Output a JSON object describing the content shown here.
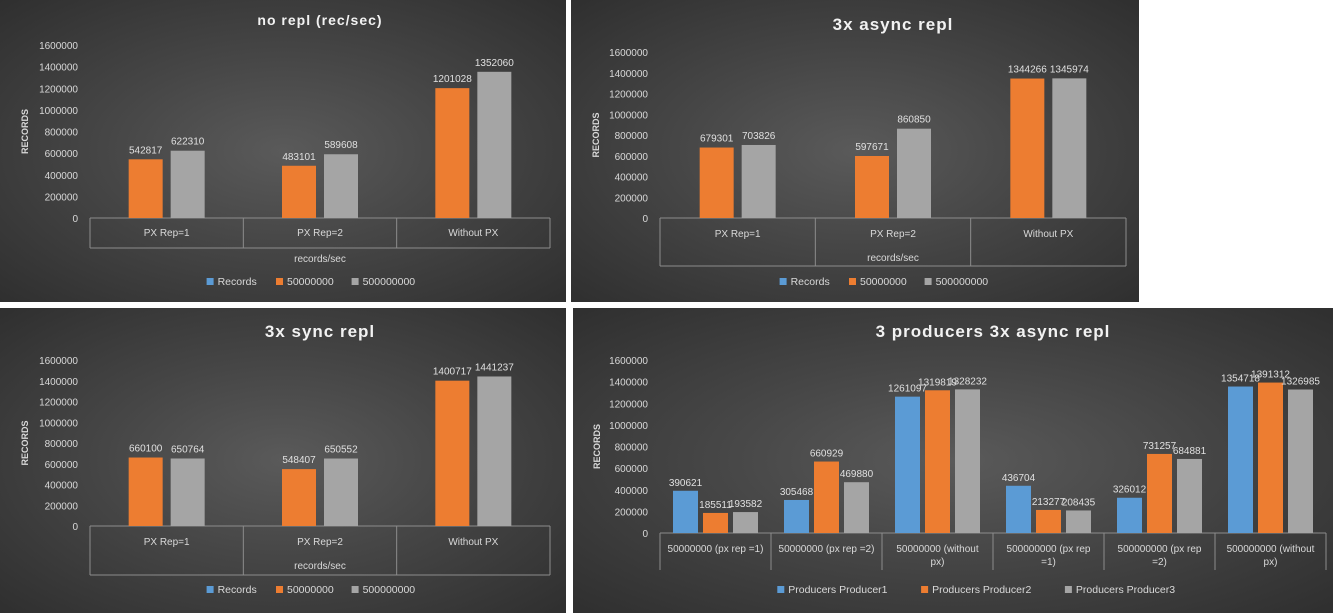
{
  "charts": [
    {
      "chart_data": {
        "type": "bar",
        "title": "no repl (rec/sec)",
        "xlabel": "records/sec",
        "ylabel": "RECORDS",
        "categories": [
          "PX Rep=1",
          "PX Rep=2",
          "Without PX"
        ],
        "series": [
          {
            "name": "Records",
            "values": [
              null,
              null,
              null
            ],
            "color": "#5b9bd5"
          },
          {
            "name": "50000000",
            "values": [
              542817,
              483101,
              1201028
            ],
            "color": "#ed7d31"
          },
          {
            "name": "500000000",
            "values": [
              622310,
              589608,
              1352060
            ],
            "color": "#a5a5a5"
          }
        ],
        "yticks": [
          0,
          200000,
          400000,
          600000,
          800000,
          1000000,
          1200000,
          1400000,
          1600000
        ],
        "ylim": [
          0,
          1600000
        ],
        "legend": "bottom",
        "grid": false
      }
    },
    {
      "chart_data": {
        "type": "bar",
        "title": "3x async repl",
        "xlabel": "records/sec",
        "ylabel": "RECORDS",
        "categories": [
          "PX Rep=1",
          "PX Rep=2",
          "Without PX"
        ],
        "series": [
          {
            "name": "Records",
            "values": [
              null,
              null,
              null
            ],
            "color": "#5b9bd5"
          },
          {
            "name": "50000000",
            "values": [
              679301,
              597671,
              1344266
            ],
            "color": "#ed7d31"
          },
          {
            "name": "500000000",
            "values": [
              703826,
              860850,
              1345974
            ],
            "color": "#a5a5a5"
          }
        ],
        "yticks": [
          0,
          200000,
          400000,
          600000,
          800000,
          1000000,
          1200000,
          1400000,
          1600000
        ],
        "ylim": [
          0,
          1600000
        ],
        "legend": "bottom",
        "grid": false
      }
    },
    {
      "chart_data": {
        "type": "bar",
        "title": "3x sync repl",
        "xlabel": "records/sec",
        "ylabel": "RECORDS",
        "categories": [
          "PX Rep=1",
          "PX Rep=2",
          "Without PX"
        ],
        "series": [
          {
            "name": "Records",
            "values": [
              null,
              null,
              null
            ],
            "color": "#5b9bd5"
          },
          {
            "name": "50000000",
            "values": [
              660100,
              548407,
              1400717
            ],
            "color": "#ed7d31"
          },
          {
            "name": "500000000",
            "values": [
              650764,
              650552,
              1441237
            ],
            "color": "#a5a5a5"
          }
        ],
        "yticks": [
          0,
          200000,
          400000,
          600000,
          800000,
          1000000,
          1200000,
          1400000,
          1600000
        ],
        "ylim": [
          0,
          1600000
        ],
        "legend": "bottom",
        "grid": false
      }
    },
    {
      "chart_data": {
        "type": "bar",
        "title": "3 producers  3x async repl",
        "xlabel": "",
        "ylabel": "RECORDS",
        "categories": [
          [
            "50000000 (px rep =1)"
          ],
          [
            "50000000 (px rep =2)"
          ],
          [
            "50000000 (without",
            "px)"
          ],
          [
            "500000000 (px rep",
            "=1)"
          ],
          [
            "500000000 (px rep",
            "=2)"
          ],
          [
            "500000000 (without",
            "px)"
          ]
        ],
        "series": [
          {
            "name": "Producers Producer1",
            "values": [
              390621,
              305468,
              1261097,
              436704,
              326012,
              1354718
            ],
            "color": "#5b9bd5"
          },
          {
            "name": "Producers Producer2",
            "values": [
              185511,
              660929,
              1319819,
              213277,
              731257,
              1391312
            ],
            "color": "#ed7d31"
          },
          {
            "name": "Producers Producer3",
            "values": [
              193582,
              469880,
              1328232,
              208435,
              684881,
              1326985
            ],
            "color": "#a5a5a5"
          }
        ],
        "yticks": [
          0,
          200000,
          400000,
          600000,
          800000,
          1000000,
          1200000,
          1400000,
          1600000
        ],
        "ylim": [
          0,
          1600000
        ],
        "legend": "bottom",
        "grid": false
      }
    }
  ]
}
